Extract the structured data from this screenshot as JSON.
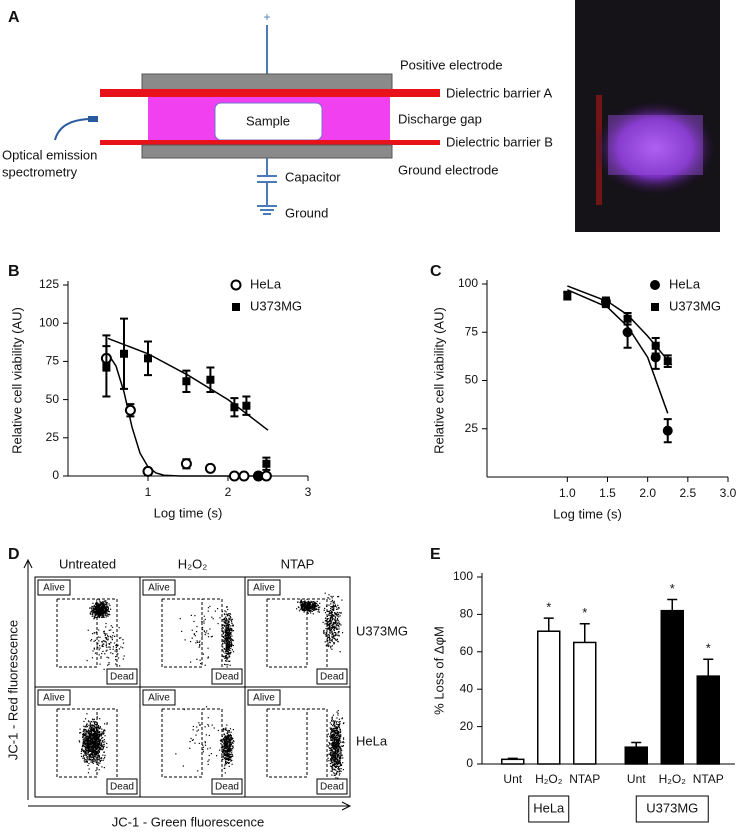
{
  "diagram": {
    "panel_label": "A",
    "plus": "+",
    "sample": "Sample",
    "positive_electrode": "Positive electrode",
    "barrier_a": "Dielectric barrier A",
    "discharge_gap": "Discharge gap",
    "barrier_b": "Dielectric barrier B",
    "ground_electrode": "Ground electrode",
    "capacitor": "Capacitor",
    "ground": "Ground",
    "spectrometry": [
      "Optical emission",
      "spectrometry"
    ]
  },
  "chart_data": [
    {
      "type": "scatter",
      "panel_label": "B",
      "xlabel": "Log time (s)",
      "ylabel": "Relative cell viability (AU)",
      "xlim": [
        0,
        3
      ],
      "xticks": [
        1,
        2,
        3
      ],
      "ylim": [
        0,
        125
      ],
      "yticks": [
        0,
        25,
        50,
        75,
        100,
        125
      ],
      "series": [
        {
          "name": "HeLa",
          "marker": "open-circle",
          "color": "#000000",
          "x": [
            0.48,
            0.78,
            1.0,
            1.48,
            1.78,
            2.08,
            2.2,
            2.38,
            2.48
          ],
          "values": [
            77,
            43,
            3,
            8,
            5,
            0,
            0,
            0,
            0
          ],
          "errors": [
            8,
            4,
            2,
            3,
            2,
            1,
            1,
            1,
            1
          ],
          "fit": {
            "x": [
              0.5,
              0.6,
              0.7,
              0.8,
              0.9,
              1.0,
              1.1,
              1.2,
              1.4,
              2.5
            ],
            "values": [
              80,
              72,
              55,
              32,
              15,
              6,
              2,
              0.5,
              0,
              0
            ]
          }
        },
        {
          "name": "U373MG",
          "marker": "square",
          "color": "#000000",
          "x": [
            0.48,
            0.7,
            1.0,
            1.48,
            1.78,
            2.08,
            2.23,
            2.38,
            2.48
          ],
          "values": [
            72,
            80,
            77,
            62,
            63,
            45,
            46,
            0,
            8
          ],
          "errors": [
            20,
            23,
            11,
            7,
            8,
            6,
            6,
            2,
            4
          ],
          "fit": {
            "x": [
              0.5,
              1.0,
              1.5,
              2.0,
              2.5
            ],
            "values": [
              90,
              80,
              66,
              50,
              30
            ]
          }
        }
      ]
    },
    {
      "type": "scatter",
      "panel_label": "C",
      "xlabel": "Log time (s)",
      "ylabel": "Relative cell viability (AU)",
      "xlim": [
        0,
        3
      ],
      "xticks": [
        {
          "value": 1,
          "label": "1.0"
        },
        1.5,
        {
          "value": 2,
          "label": "2.0"
        },
        2.5,
        {
          "value": 3,
          "label": "3.0"
        }
      ],
      "ylim": [
        0,
        100
      ],
      "yticks": [
        25,
        50,
        75,
        100
      ],
      "series": [
        {
          "name": "HeLa",
          "marker": "circle",
          "color": "#000000",
          "x": [
            1.48,
            1.75,
            2.1,
            2.25
          ],
          "values": [
            91,
            75,
            62,
            24
          ],
          "errors": [
            2,
            8,
            6,
            6
          ],
          "fit": {
            "x": [
              1.0,
              1.5,
              1.75,
              2.0,
              2.25
            ],
            "values": [
              97,
              88,
              78,
              62,
              33
            ]
          }
        },
        {
          "name": "U373MG",
          "marker": "square",
          "color": "#000000",
          "x": [
            1.0,
            1.48,
            1.75,
            2.1,
            2.25
          ],
          "values": [
            94,
            90,
            82,
            68,
            60
          ],
          "errors": [
            2,
            2,
            3,
            4,
            3
          ],
          "fit": {
            "x": [
              1.0,
              1.5,
              1.75,
              2.0,
              2.3
            ],
            "values": [
              99,
              91,
              84,
              73,
              58
            ]
          }
        }
      ]
    },
    {
      "type": "bar",
      "panel_label": "E",
      "ylabel": "% Loss of ΔφM",
      "ylim": [
        0,
        100
      ],
      "yticks": [
        0,
        20,
        40,
        60,
        80,
        100
      ],
      "categories": [
        "Unt",
        "H₂O₂",
        "NTAP"
      ],
      "annotation": "*",
      "series": [
        {
          "name": "HeLa",
          "color": "#ffffff",
          "values": [
            2.5,
            71,
            65
          ],
          "errors": [
            0.5,
            7,
            10
          ],
          "annotated": [
            1,
            2
          ]
        },
        {
          "name": "U373MG",
          "color": "#000000",
          "values": [
            9,
            82,
            47
          ],
          "errors": [
            2.5,
            6,
            9
          ],
          "annotated": [
            1,
            2
          ]
        }
      ]
    }
  ],
  "flow_panel": {
    "panel_label": "D",
    "columns": [
      "Untreated",
      "H₂O₂",
      "NTAP"
    ],
    "rows": [
      "U373MG",
      "HeLa"
    ],
    "gate_alive": "Alive",
    "gate_dead": "Dead",
    "ylabel": "JC-1 - Red fluorescence",
    "xlabel": "JC-1 - Green fluorescence"
  }
}
